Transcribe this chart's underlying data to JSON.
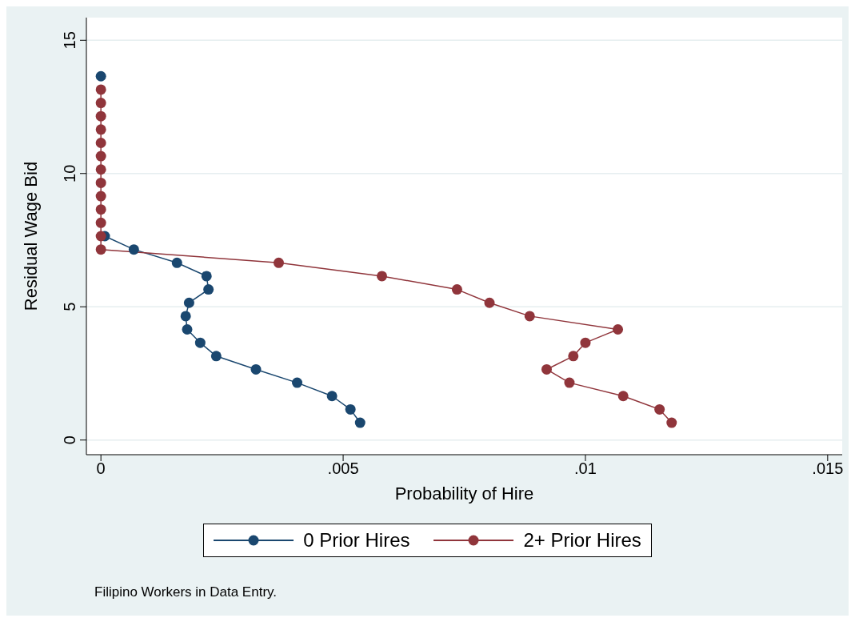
{
  "chart_data": {
    "type": "line",
    "xlabel": "Probability of Hire",
    "ylabel": "Residual Wage Bid",
    "xlim": [
      -0.0003,
      0.0153
    ],
    "xticks": [
      {
        "value": 0,
        "label": "0"
      },
      {
        "value": 0.005,
        "label": ".005"
      },
      {
        "value": 0.01,
        "label": ".01"
      },
      {
        "value": 0.015,
        "label": ".015"
      }
    ],
    "ylim": [
      -0.55,
      15.85
    ],
    "yticks": [
      0,
      5,
      10,
      15
    ],
    "grid": "y",
    "legend": "bottom",
    "marker": "circle",
    "line_style": "solid",
    "annotations": [
      "Filipino Workers in Data Entry."
    ],
    "series": [
      {
        "name": "0 Prior Hires",
        "color": "#1a476f",
        "x": [
          0.00535,
          0.00515,
          0.00477,
          0.00405,
          0.0032,
          0.00238,
          0.00205,
          0.00178,
          0.00175,
          0.00182,
          0.00222,
          0.00218,
          0.00157,
          0.00068,
          8e-05,
          null,
          null,
          null,
          null,
          null,
          null,
          null,
          null,
          null,
          null,
          null,
          0
        ],
        "values": [
          0.65,
          1.15,
          1.65,
          2.15,
          2.65,
          3.15,
          3.65,
          4.15,
          4.65,
          5.15,
          5.65,
          6.15,
          6.65,
          7.15,
          7.65,
          null,
          null,
          null,
          null,
          null,
          null,
          null,
          null,
          null,
          null,
          null,
          13.65
        ]
      },
      {
        "name": "2+ Prior Hires",
        "color": "#90353b",
        "x": [
          0.01178,
          0.01153,
          0.01078,
          0.00967,
          0.0092,
          0.00975,
          0.01,
          0.01067,
          0.00885,
          0.00802,
          0.00735,
          0.0058,
          0.00367,
          0,
          0,
          0,
          0,
          0,
          0,
          0,
          0,
          0,
          0,
          0,
          0,
          0
        ],
        "values": [
          0.65,
          1.15,
          1.65,
          2.15,
          2.65,
          3.15,
          3.65,
          4.15,
          4.65,
          5.15,
          5.65,
          6.15,
          6.65,
          7.15,
          7.65,
          8.15,
          8.65,
          9.15,
          9.65,
          10.15,
          10.65,
          11.15,
          11.65,
          12.15,
          12.65,
          13.15
        ]
      }
    ]
  }
}
